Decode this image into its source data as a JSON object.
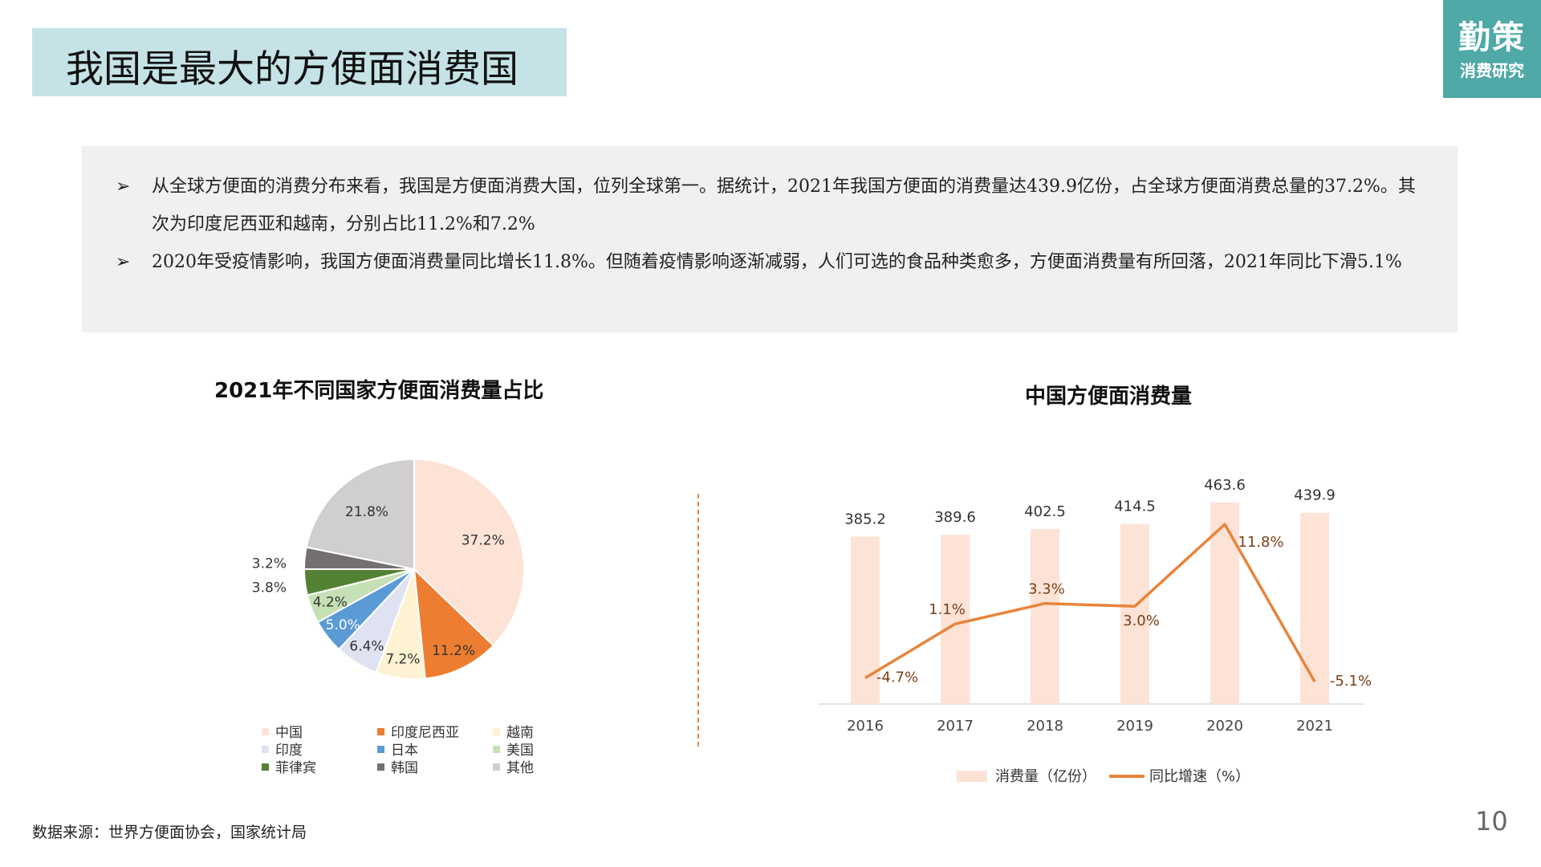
{
  "page": {
    "title": "我国是最大的方便面消费国",
    "logo_main": "勤策",
    "logo_sub": "消费研究",
    "bullets": [
      "从全球方便面的消费分布来看，我国是方便面消费大国，位列全球第一。据统计，2021年我国方便面的消费量达439.9亿份，占全球方便面消费总量的37.2%。其次为印度尼西亚和越南，分别占比11.2%和7.2%",
      "2020年受疫情影响，我国方便面消费量同比增长11.8%。但随着疫情影响逐渐减弱，人们可选的食品种类愈多，方便面消费量有所回落，2021年同比下滑5.1%"
    ],
    "bullet_marker": "➢",
    "source": "数据来源：世界方便面协会，国家统计局",
    "page_number": "10",
    "colors": {
      "title_bg": "#c5e3e6",
      "logo_bg": "#4fa9a6",
      "accent": "#e8843a"
    }
  },
  "chart_data": [
    {
      "type": "pie",
      "title": "2021年不同国家方便面消费量占比",
      "slices": [
        {
          "name": "中国",
          "value": 37.2,
          "label": "37.2%",
          "color": "#fce3d6"
        },
        {
          "name": "印度尼西亚",
          "value": 11.2,
          "label": "11.2%",
          "color": "#ed7d31"
        },
        {
          "name": "越南",
          "value": 7.2,
          "label": "7.2%",
          "color": "#fdf3d2"
        },
        {
          "name": "印度",
          "value": 6.4,
          "label": "6.4%",
          "color": "#dfe3f1"
        },
        {
          "name": "日本",
          "value": 5.0,
          "label": "5.0%",
          "color": "#5b9bd5"
        },
        {
          "name": "美国",
          "value": 4.2,
          "label": "4.2%",
          "color": "#c5e0b4"
        },
        {
          "name": "菲律宾",
          "value": 3.8,
          "label": "3.8%",
          "color": "#548235"
        },
        {
          "name": "韩国",
          "value": 3.2,
          "label": "3.2%",
          "color": "#747070"
        },
        {
          "name": "其他",
          "value": 21.8,
          "label": "21.8%",
          "color": "#d0cece"
        }
      ]
    },
    {
      "type": "bar",
      "title": "中国方便面消费量",
      "categories": [
        "2016",
        "2017",
        "2018",
        "2019",
        "2020",
        "2021"
      ],
      "series": [
        {
          "name": "消费量（亿份）",
          "type": "bar",
          "values": [
            385.2,
            389.6,
            402.5,
            414.5,
            463.6,
            439.9
          ],
          "labels": [
            "385.2",
            "389.6",
            "402.5",
            "414.5",
            "463.6",
            "439.9"
          ],
          "color": "#fce3d6"
        },
        {
          "name": "同比增速（%）",
          "type": "line",
          "values": [
            -4.7,
            1.1,
            3.3,
            3.0,
            11.8,
            -5.1
          ],
          "labels": [
            "-4.7%",
            "1.1%",
            "3.3%",
            "3.0%",
            "11.8%",
            "-5.1%"
          ],
          "color": "#e8843a"
        }
      ],
      "legend_position": "bottom"
    }
  ]
}
